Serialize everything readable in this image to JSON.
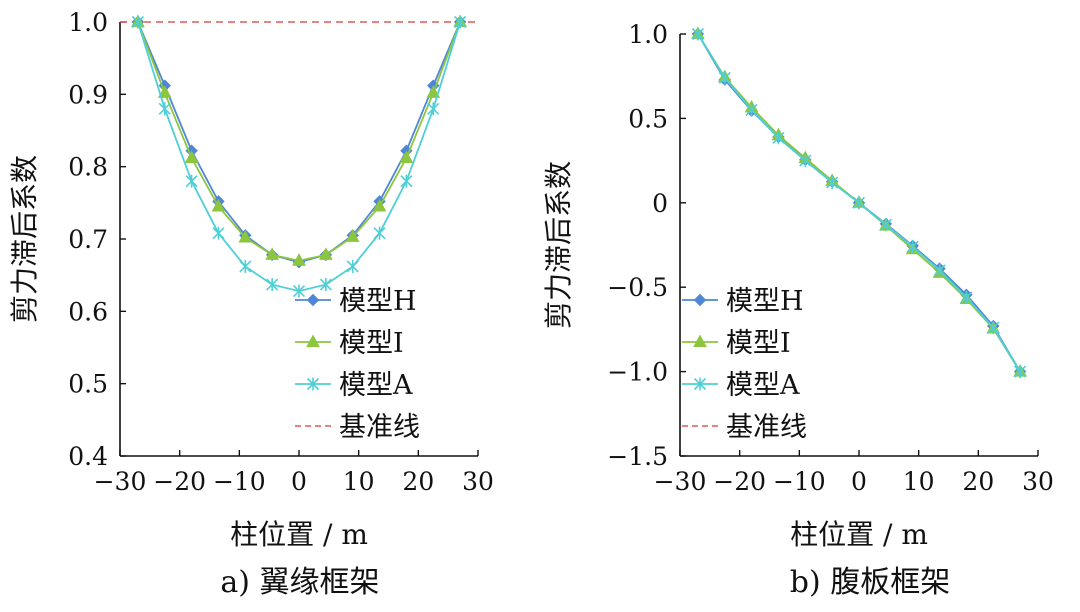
{
  "chart_data": [
    {
      "type": "line",
      "caption": "a)  翼缘框架",
      "xlabel": "柱位置 / m",
      "ylabel": "剪力滞后系数",
      "xlim": [
        -30,
        30
      ],
      "ylim": [
        0.4,
        1.0
      ],
      "xticks": [
        "−30",
        "−20",
        "−10",
        "0",
        "10",
        "20",
        "30"
      ],
      "yticks": [
        "0.4",
        "0.5",
        "0.6",
        "0.7",
        "0.8",
        "0.9",
        "1.0"
      ],
      "x": [
        -27,
        -22.5,
        -18,
        -13.5,
        -9,
        -4.5,
        0,
        4.5,
        9,
        13.5,
        18,
        22.5,
        27
      ],
      "series": [
        {
          "name": "模型H",
          "color": "#4f86d6",
          "marker": "diamond",
          "values": [
            1.0,
            0.912,
            0.822,
            0.752,
            0.705,
            0.678,
            0.668,
            0.678,
            0.705,
            0.752,
            0.822,
            0.912,
            1.0
          ]
        },
        {
          "name": "模型I",
          "color": "#8cc63f",
          "marker": "triangle",
          "values": [
            1.0,
            0.902,
            0.812,
            0.745,
            0.702,
            0.678,
            0.67,
            0.678,
            0.703,
            0.745,
            0.812,
            0.902,
            1.0
          ]
        },
        {
          "name": "模型A",
          "color": "#4ecfd6",
          "marker": "asterisk",
          "values": [
            1.0,
            0.88,
            0.78,
            0.708,
            0.662,
            0.637,
            0.628,
            0.637,
            0.662,
            0.708,
            0.78,
            0.88,
            1.0
          ]
        }
      ],
      "reference": {
        "name": "基准线",
        "color": "#e05a5a",
        "value": 1.0
      },
      "legend": [
        "模型H",
        "模型I",
        "模型A",
        "基准线"
      ],
      "legend_position": "bottom-right"
    },
    {
      "type": "line",
      "caption": "b)  腹板框架",
      "xlabel": "柱位置 / m",
      "ylabel": "剪力滞后系数",
      "xlim": [
        -30,
        30
      ],
      "ylim": [
        -1.5,
        1.0
      ],
      "xticks": [
        "−30",
        "−20",
        "−10",
        "0",
        "10",
        "20",
        "30"
      ],
      "yticks": [
        "−1.5",
        "−1.0",
        "−0.5",
        "0",
        "0.5",
        "1.0"
      ],
      "x": [
        -27,
        -22.5,
        -18,
        -13.5,
        -9,
        -4.5,
        0,
        4.5,
        9,
        13.5,
        18,
        22.5,
        27
      ],
      "series": [
        {
          "name": "模型H",
          "color": "#4f86d6",
          "marker": "diamond",
          "values": [
            1.0,
            0.73,
            0.545,
            0.39,
            0.255,
            0.125,
            0.0,
            -0.125,
            -0.255,
            -0.39,
            -0.545,
            -0.73,
            -1.0
          ]
        },
        {
          "name": "模型I",
          "color": "#8cc63f",
          "marker": "triangle",
          "values": [
            1.0,
            0.745,
            0.565,
            0.4,
            0.265,
            0.13,
            0.0,
            -0.135,
            -0.275,
            -0.415,
            -0.57,
            -0.745,
            -1.0
          ]
        },
        {
          "name": "模型A",
          "color": "#4ecfd6",
          "marker": "asterisk",
          "values": [
            1.0,
            0.74,
            0.55,
            0.385,
            0.25,
            0.12,
            0.0,
            -0.13,
            -0.26,
            -0.4,
            -0.56,
            -0.74,
            -1.0
          ]
        }
      ],
      "reference": null,
      "legend": [
        "模型H",
        "模型I",
        "模型A",
        "基准线"
      ],
      "legend_position": "bottom-left"
    }
  ]
}
